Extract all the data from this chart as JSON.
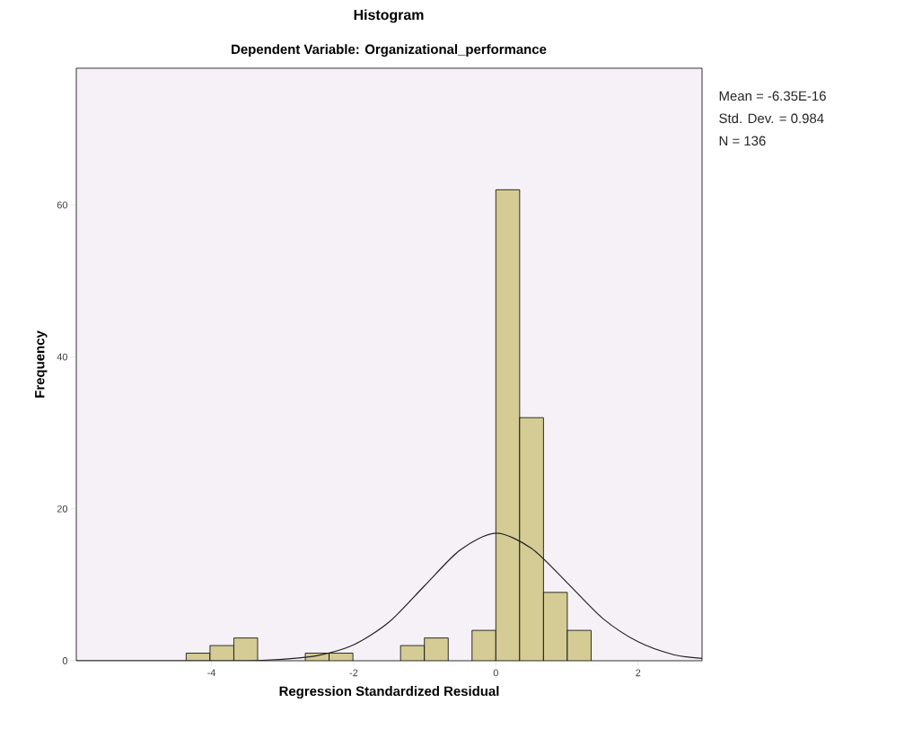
{
  "chart_data": {
    "type": "histogram",
    "title": "Histogram",
    "subtitle": "Dependent Variable: Organizational_performance",
    "xlabel": "Regression Standardized Residual",
    "ylabel": "Frequency",
    "series": [
      {
        "color": "#d4cc94",
        "bins": [
          -4.355,
          -4.02,
          -3.685,
          -3.35,
          -3.015,
          -2.68,
          -2.345,
          -2.01,
          -1.675,
          -1.34,
          -1.005,
          -0.67,
          -0.335,
          0,
          0.335,
          0.67,
          1.005,
          1.34
        ],
        "values": [
          1,
          2,
          3,
          0,
          0,
          1,
          1,
          0,
          0,
          2,
          3,
          0,
          4,
          62,
          32,
          9,
          4
        ]
      },
      {
        "type": "line",
        "color": "#222222",
        "x": [
          -5.9,
          -4.5,
          -4,
          -3.5,
          -3,
          -2.5,
          -2,
          -1.5,
          -1,
          -0.5,
          0,
          0.5,
          1,
          1.5,
          2,
          2.5,
          2.9
        ],
        "values": [
          0,
          0,
          0,
          0,
          0.2,
          0.7,
          2.1,
          5.1,
          9.9,
          14.6,
          16.8,
          14.8,
          10.3,
          5.6,
          2.5,
          0.8,
          0.3
        ]
      }
    ],
    "xlim": [
      -5.9,
      2.9
    ],
    "ylim": [
      0,
      78
    ],
    "xticks": [
      -4,
      -2,
      0,
      2
    ],
    "yticks": [
      0,
      20,
      40,
      60
    ],
    "annotations": [
      "Mean = -6.35E-16",
      "Std. Dev. = 0.984",
      "N = 136"
    ]
  }
}
